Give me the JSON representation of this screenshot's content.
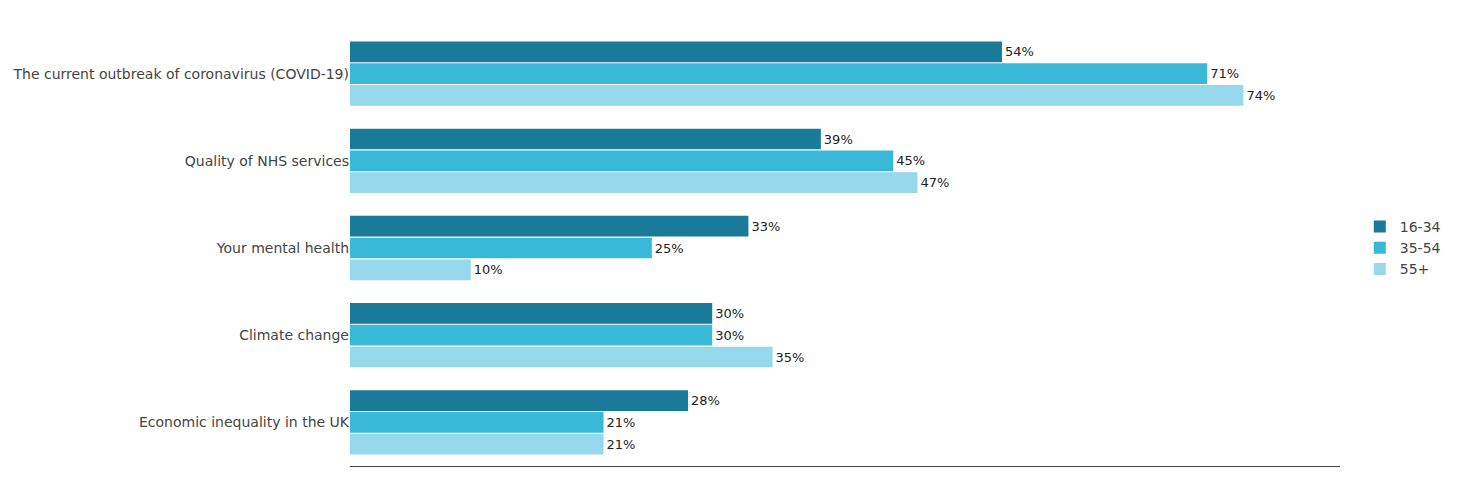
{
  "chart_data": {
    "type": "bar",
    "orientation": "horizontal",
    "categories": [
      "The current outbreak of coronavirus (COVID-19)",
      "Quality of NHS services",
      "Your mental health",
      "Climate change",
      "Economic inequality in the UK"
    ],
    "series": [
      {
        "name": "16-34",
        "color": "#1a7a9a",
        "values": [
          54,
          39,
          33,
          30,
          28
        ],
        "value_labels": [
          "54%",
          "39%",
          "33%",
          "30%",
          "28%"
        ]
      },
      {
        "name": "35-54",
        "color": "#3ab8d8",
        "values": [
          71,
          45,
          25,
          30,
          21
        ],
        "value_labels": [
          "71%",
          "45%",
          "25%",
          "30%",
          "21%"
        ]
      },
      {
        "name": "55+",
        "color": "#96d9ec",
        "values": [
          74,
          47,
          10,
          35,
          21
        ],
        "value_labels": [
          "74%",
          "47%",
          "10%",
          "35%",
          "21%"
        ]
      }
    ],
    "xlim": [
      0,
      82
    ],
    "data_labels": true,
    "tick_labels": "y",
    "grid": false,
    "legend": "right"
  }
}
